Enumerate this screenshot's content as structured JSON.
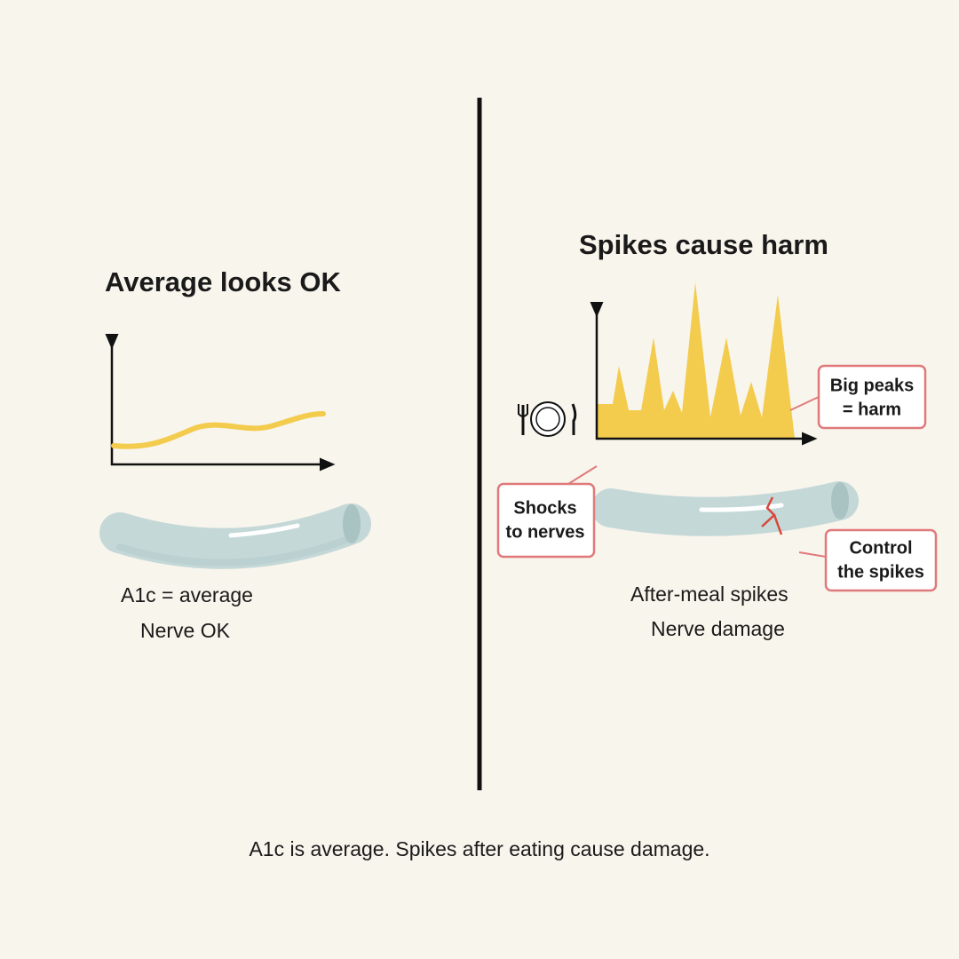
{
  "left": {
    "title": "Average looks OK",
    "caption": [
      "A1c = average",
      "Nerve OK"
    ]
  },
  "right": {
    "title": "Spikes cause harm",
    "callouts": [
      {
        "lines": [
          "Big peaks",
          "= harm"
        ]
      },
      {
        "lines": [
          "Shocks",
          "to nerves"
        ]
      },
      {
        "lines": [
          "Control",
          "the spikes"
        ]
      }
    ],
    "caption": [
      "After-meal spikes",
      "Nerve damage"
    ]
  },
  "footer": "A1c is average. Spikes after eating cause damage."
}
